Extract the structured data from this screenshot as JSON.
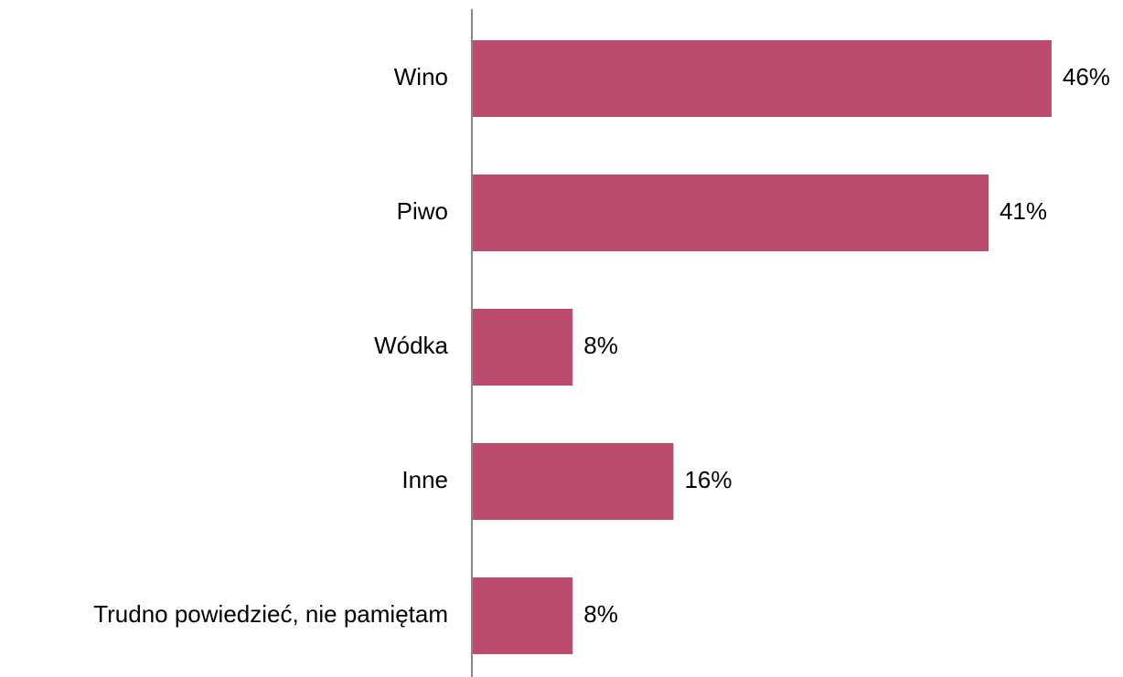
{
  "chart_data": {
    "type": "bar",
    "orientation": "horizontal",
    "categories": [
      "Wino",
      "Piwo",
      "Wódka",
      "Inne",
      "Trudno powiedzieć, nie pamiętam"
    ],
    "values": [
      46,
      41,
      8,
      16,
      8
    ],
    "value_labels": [
      "46%",
      "41%",
      "8%",
      "16%",
      "8%"
    ],
    "color": "#bc4b6e",
    "xlim": [
      0,
      50
    ]
  }
}
